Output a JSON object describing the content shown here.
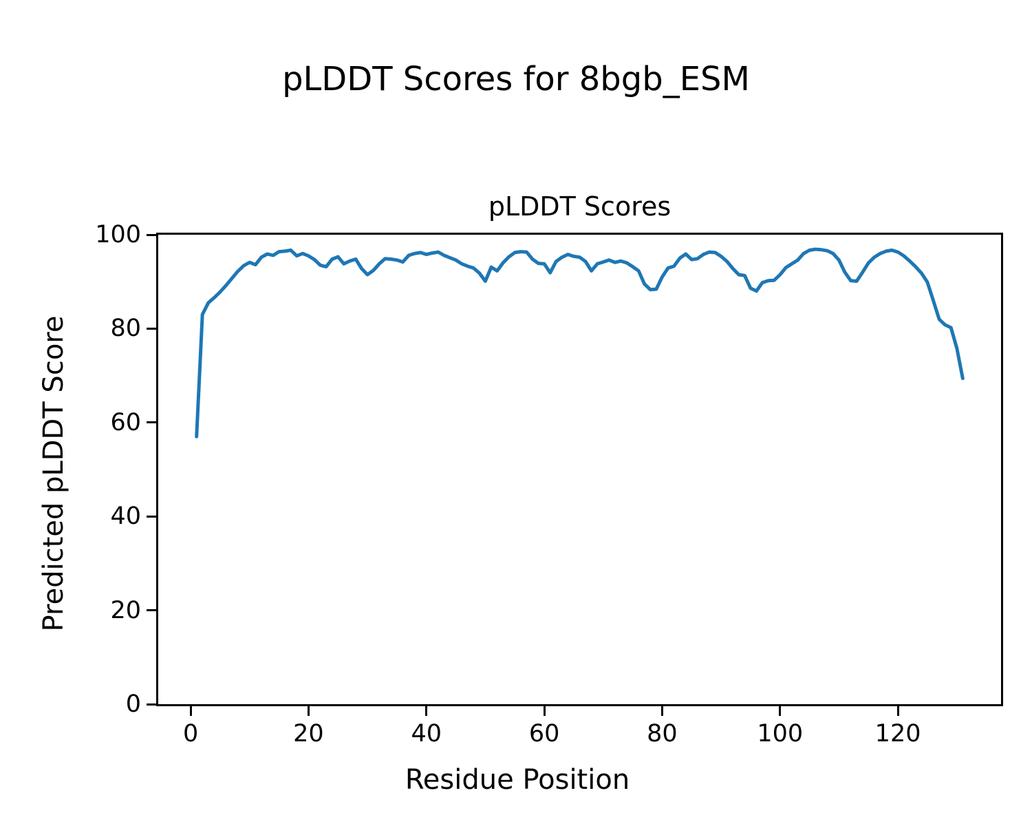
{
  "figure": {
    "suptitle": "pLDDT Scores for 8bgb_ESM"
  },
  "chart_data": {
    "type": "line",
    "title": "pLDDT Scores",
    "xlabel": "Residue Position",
    "ylabel": "Predicted pLDDT Score",
    "line_color": "#1f77b4",
    "grid": false,
    "legend": "none",
    "xlim": [
      -5.5,
      137.5
    ],
    "ylim": [
      0,
      100
    ],
    "x_ticks": [
      0,
      20,
      40,
      60,
      80,
      100,
      120
    ],
    "y_ticks": [
      0,
      20,
      40,
      60,
      80,
      100
    ],
    "x_start": 1,
    "values": [
      57.0,
      83.0,
      85.5,
      86.6,
      87.8,
      89.2,
      90.7,
      92.2,
      93.4,
      94.1,
      93.6,
      95.2,
      95.9,
      95.6,
      96.4,
      96.5,
      96.7,
      95.5,
      96.0,
      95.5,
      94.7,
      93.5,
      93.2,
      94.8,
      95.3,
      93.8,
      94.4,
      94.8,
      92.8,
      91.5,
      92.4,
      93.8,
      94.9,
      94.8,
      94.6,
      94.2,
      95.6,
      96.0,
      96.2,
      95.8,
      96.1,
      96.3,
      95.6,
      95.1,
      94.6,
      93.8,
      93.3,
      92.9,
      91.8,
      90.1,
      93.1,
      92.3,
      94.0,
      95.3,
      96.2,
      96.4,
      96.3,
      94.8,
      93.9,
      93.8,
      91.9,
      94.3,
      95.2,
      95.8,
      95.4,
      95.2,
      94.3,
      92.3,
      93.8,
      94.2,
      94.6,
      94.1,
      94.4,
      94.0,
      93.2,
      92.3,
      89.5,
      88.3,
      88.4,
      91.0,
      92.9,
      93.3,
      95.0,
      95.9,
      94.7,
      94.9,
      95.8,
      96.3,
      96.2,
      95.4,
      94.3,
      92.8,
      91.5,
      91.3,
      88.6,
      88.0,
      89.8,
      90.2,
      90.3,
      91.5,
      93.0,
      93.8,
      94.6,
      96.0,
      96.7,
      96.9,
      96.8,
      96.6,
      96.0,
      94.6,
      92.0,
      90.2,
      90.1,
      92.0,
      94.0,
      95.2,
      96.0,
      96.5,
      96.7,
      96.3,
      95.5,
      94.4,
      93.2,
      91.8,
      89.9,
      86.0,
      82.0,
      80.8,
      80.2,
      75.8,
      69.4
    ]
  }
}
